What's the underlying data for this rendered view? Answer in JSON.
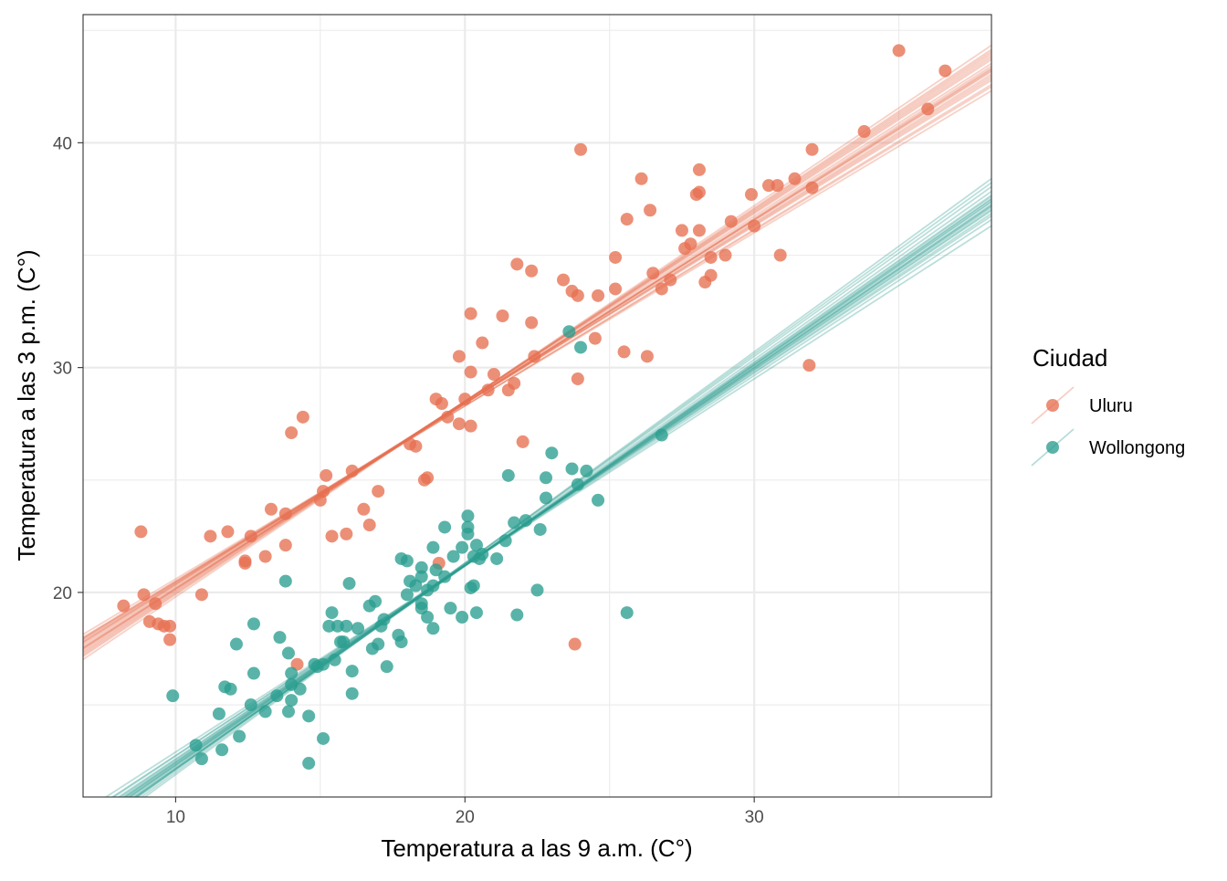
{
  "chart_data": {
    "type": "scatter",
    "xlabel": "Temperatura a las 9 a.m. (C°)",
    "ylabel": "Temperatura a las 3 p.m. (C°)",
    "xlim": [
      6.8,
      38.2
    ],
    "ylim": [
      10.9,
      45.7
    ],
    "x_ticks": [
      10,
      20,
      30
    ],
    "y_ticks": [
      20,
      30,
      40
    ],
    "grid": true,
    "legend_title": "Ciudad",
    "legend_position": "right",
    "series": [
      {
        "name": "Uluru",
        "color": "#E76F51",
        "points": [
          [
            8.2,
            19.4
          ],
          [
            8.8,
            22.7
          ],
          [
            8.9,
            19.9
          ],
          [
            9.1,
            18.7
          ],
          [
            9.3,
            19.5
          ],
          [
            9.4,
            18.6
          ],
          [
            9.6,
            18.5
          ],
          [
            9.8,
            18.5
          ],
          [
            9.8,
            17.9
          ],
          [
            10.9,
            19.9
          ],
          [
            11.2,
            22.5
          ],
          [
            11.8,
            22.7
          ],
          [
            12.4,
            21.3
          ],
          [
            12.4,
            21.4
          ],
          [
            12.6,
            22.5
          ],
          [
            13.1,
            21.6
          ],
          [
            13.3,
            23.7
          ],
          [
            13.8,
            22.1
          ],
          [
            13.8,
            23.5
          ],
          [
            14.0,
            27.1
          ],
          [
            14.2,
            16.8
          ],
          [
            14.4,
            27.8
          ],
          [
            15.0,
            24.1
          ],
          [
            15.1,
            24.5
          ],
          [
            15.2,
            25.2
          ],
          [
            15.4,
            22.5
          ],
          [
            15.9,
            22.6
          ],
          [
            16.1,
            25.4
          ],
          [
            16.5,
            23.7
          ],
          [
            16.7,
            23.0
          ],
          [
            17.0,
            24.5
          ],
          [
            18.1,
            26.6
          ],
          [
            18.3,
            26.5
          ],
          [
            18.6,
            25.0
          ],
          [
            18.7,
            25.1
          ],
          [
            19.0,
            28.6
          ],
          [
            19.2,
            28.4
          ],
          [
            19.4,
            27.8
          ],
          [
            19.8,
            27.5
          ],
          [
            19.8,
            30.5
          ],
          [
            20.2,
            32.4
          ],
          [
            20.2,
            29.8
          ],
          [
            20.2,
            27.4
          ],
          [
            20.6,
            31.1
          ],
          [
            20.8,
            29.0
          ],
          [
            21.0,
            29.7
          ],
          [
            21.3,
            32.3
          ],
          [
            21.5,
            29.0
          ],
          [
            21.7,
            29.3
          ],
          [
            21.8,
            34.6
          ],
          [
            22.0,
            26.7
          ],
          [
            22.3,
            34.3
          ],
          [
            22.3,
            32.0
          ],
          [
            22.4,
            30.5
          ],
          [
            23.4,
            33.9
          ],
          [
            23.7,
            33.4
          ],
          [
            23.9,
            33.2
          ],
          [
            23.9,
            29.5
          ],
          [
            24.0,
            39.7
          ],
          [
            24.5,
            31.3
          ],
          [
            24.6,
            33.2
          ],
          [
            25.2,
            33.5
          ],
          [
            25.2,
            34.9
          ],
          [
            25.5,
            30.7
          ],
          [
            25.6,
            36.6
          ],
          [
            26.1,
            38.4
          ],
          [
            26.3,
            30.5
          ],
          [
            26.4,
            37.0
          ],
          [
            26.5,
            34.2
          ],
          [
            26.8,
            33.5
          ],
          [
            27.1,
            33.9
          ],
          [
            27.5,
            36.1
          ],
          [
            27.6,
            35.3
          ],
          [
            27.8,
            35.5
          ],
          [
            28.0,
            37.7
          ],
          [
            28.1,
            38.8
          ],
          [
            28.1,
            37.8
          ],
          [
            28.1,
            36.1
          ],
          [
            28.3,
            33.8
          ],
          [
            28.5,
            34.1
          ],
          [
            28.5,
            34.9
          ],
          [
            29.0,
            35.0
          ],
          [
            29.2,
            36.5
          ],
          [
            29.9,
            37.7
          ],
          [
            30.0,
            36.3
          ],
          [
            30.5,
            38.1
          ],
          [
            30.8,
            38.1
          ],
          [
            30.9,
            35.0
          ],
          [
            31.4,
            38.4
          ],
          [
            31.9,
            30.1
          ],
          [
            32.0,
            39.7
          ],
          [
            32.0,
            38.0
          ],
          [
            33.8,
            40.5
          ],
          [
            35.0,
            44.1
          ],
          [
            36.0,
            41.5
          ],
          [
            36.6,
            43.2
          ],
          [
            23.8,
            17.7
          ],
          [
            19.1,
            21.3
          ],
          [
            20.0,
            28.6
          ]
        ],
        "fit_lines": [
          [
            0.82,
            12.0
          ],
          [
            0.805,
            12.3
          ],
          [
            0.835,
            11.8
          ],
          [
            0.795,
            12.5
          ],
          [
            0.845,
            11.6
          ],
          [
            0.78,
            12.7
          ],
          [
            0.86,
            11.3
          ],
          [
            0.812,
            12.2
          ],
          [
            0.828,
            11.9
          ],
          [
            0.79,
            12.6
          ],
          [
            0.85,
            11.5
          ],
          [
            0.77,
            12.9
          ],
          [
            0.87,
            11.1
          ],
          [
            0.816,
            12.1
          ],
          [
            0.8,
            12.4
          ],
          [
            0.84,
            11.7
          ],
          [
            0.785,
            12.6
          ],
          [
            0.855,
            11.4
          ],
          [
            0.825,
            11.9
          ],
          [
            0.808,
            12.3
          ]
        ]
      },
      {
        "name": "Wollongong",
        "color": "#2A9D8F",
        "points": [
          [
            9.9,
            15.4
          ],
          [
            10.7,
            13.2
          ],
          [
            10.9,
            12.6
          ],
          [
            11.5,
            14.6
          ],
          [
            11.6,
            13.0
          ],
          [
            11.7,
            15.8
          ],
          [
            11.9,
            15.7
          ],
          [
            12.1,
            17.7
          ],
          [
            12.2,
            13.6
          ],
          [
            12.6,
            15.0
          ],
          [
            12.7,
            18.6
          ],
          [
            12.7,
            16.4
          ],
          [
            13.1,
            14.7
          ],
          [
            13.5,
            15.4
          ],
          [
            13.6,
            18.0
          ],
          [
            13.8,
            20.5
          ],
          [
            13.9,
            17.3
          ],
          [
            13.9,
            14.7
          ],
          [
            14.0,
            15.9
          ],
          [
            14.0,
            15.2
          ],
          [
            14.0,
            16.4
          ],
          [
            14.3,
            15.7
          ],
          [
            14.6,
            14.5
          ],
          [
            14.6,
            12.4
          ],
          [
            14.8,
            16.8
          ],
          [
            14.9,
            16.7
          ],
          [
            15.1,
            13.5
          ],
          [
            15.1,
            16.8
          ],
          [
            15.3,
            18.5
          ],
          [
            15.4,
            19.1
          ],
          [
            15.5,
            17.0
          ],
          [
            15.6,
            18.5
          ],
          [
            15.7,
            17.8
          ],
          [
            15.8,
            17.8
          ],
          [
            15.9,
            18.5
          ],
          [
            16.0,
            20.4
          ],
          [
            16.1,
            16.5
          ],
          [
            16.1,
            15.5
          ],
          [
            16.3,
            18.4
          ],
          [
            16.7,
            19.4
          ],
          [
            16.8,
            17.5
          ],
          [
            16.9,
            19.6
          ],
          [
            17.0,
            17.7
          ],
          [
            17.1,
            18.5
          ],
          [
            17.2,
            18.8
          ],
          [
            17.3,
            16.7
          ],
          [
            17.7,
            18.1
          ],
          [
            17.8,
            17.8
          ],
          [
            17.8,
            21.5
          ],
          [
            18.0,
            21.4
          ],
          [
            18.0,
            19.9
          ],
          [
            18.3,
            20.3
          ],
          [
            18.5,
            19.5
          ],
          [
            18.5,
            19.3
          ],
          [
            18.5,
            21.1
          ],
          [
            18.5,
            20.7
          ],
          [
            18.7,
            18.9
          ],
          [
            18.7,
            20.1
          ],
          [
            18.9,
            20.3
          ],
          [
            18.9,
            18.4
          ],
          [
            18.9,
            22.0
          ],
          [
            19.3,
            22.9
          ],
          [
            19.3,
            20.7
          ],
          [
            19.5,
            19.3
          ],
          [
            19.6,
            21.6
          ],
          [
            19.9,
            22.0
          ],
          [
            19.9,
            18.9
          ],
          [
            20.1,
            23.4
          ],
          [
            20.1,
            22.9
          ],
          [
            20.1,
            22.6
          ],
          [
            20.2,
            20.2
          ],
          [
            20.3,
            20.3
          ],
          [
            20.3,
            21.6
          ],
          [
            20.4,
            22.1
          ],
          [
            20.4,
            19.1
          ],
          [
            20.6,
            21.7
          ],
          [
            21.1,
            21.5
          ],
          [
            21.4,
            22.3
          ],
          [
            21.5,
            25.2
          ],
          [
            21.7,
            23.1
          ],
          [
            21.8,
            19.0
          ],
          [
            22.1,
            23.2
          ],
          [
            22.5,
            20.1
          ],
          [
            22.6,
            22.8
          ],
          [
            22.8,
            25.1
          ],
          [
            22.8,
            24.2
          ],
          [
            23.0,
            26.2
          ],
          [
            23.6,
            31.6
          ],
          [
            23.7,
            25.5
          ],
          [
            23.9,
            24.8
          ],
          [
            24.0,
            30.9
          ],
          [
            24.2,
            25.4
          ],
          [
            24.6,
            24.1
          ],
          [
            25.6,
            19.1
          ],
          [
            26.8,
            27.0
          ],
          [
            20.5,
            21.5
          ],
          [
            18.1,
            20.5
          ],
          [
            19.0,
            21.0
          ]
        ],
        "fit_lines": [
          [
            0.89,
            3.4
          ],
          [
            0.875,
            3.7
          ],
          [
            0.905,
            3.1
          ],
          [
            0.86,
            4.0
          ],
          [
            0.92,
            2.9
          ],
          [
            0.845,
            4.3
          ],
          [
            0.93,
            2.7
          ],
          [
            0.88,
            3.6
          ],
          [
            0.898,
            3.2
          ],
          [
            0.866,
            3.9
          ],
          [
            0.912,
            3.0
          ],
          [
            0.852,
            4.2
          ],
          [
            0.87,
            3.8
          ],
          [
            0.884,
            3.5
          ],
          [
            0.895,
            3.3
          ],
          [
            0.94,
            2.5
          ],
          [
            0.83,
            4.6
          ],
          [
            0.878,
            3.65
          ],
          [
            0.902,
            3.15
          ],
          [
            0.888,
            3.45
          ]
        ]
      }
    ]
  }
}
